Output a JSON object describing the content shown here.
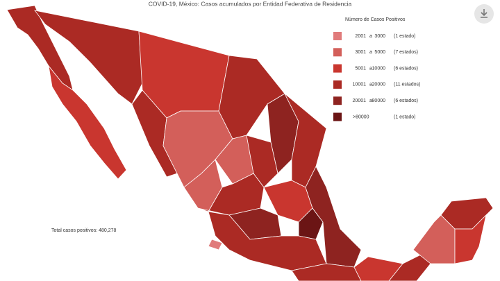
{
  "header": {
    "title": "COVID-19, México: Casos acumulados por Entidad Federativa de Residencia"
  },
  "legend": {
    "title": "Número de Casos Positivos",
    "items": [
      {
        "from": "2001",
        "sep": "a",
        "to": "3000",
        "count": "(1 estado)",
        "color": "#e07b7b"
      },
      {
        "from": "3001",
        "sep": "a",
        "to": "5000",
        "count": "(7 estados)",
        "color": "#d35f5a"
      },
      {
        "from": "5001",
        "sep": "a",
        "to": "10000",
        "count": "(6 estados)",
        "color": "#c9362f"
      },
      {
        "from": "10001",
        "sep": "a",
        "to": "20000",
        "count": "(11 estados)",
        "color": "#ab2a24"
      },
      {
        "from": "20001",
        "sep": "a",
        "to": "80000",
        "count": "(6 estados)",
        "color": "#8e2320"
      },
      {
        "from": ">80000",
        "count": "(1 estado)",
        "color": "#6b1515"
      }
    ]
  },
  "total": "Total casos positivos: 480,278"
}
